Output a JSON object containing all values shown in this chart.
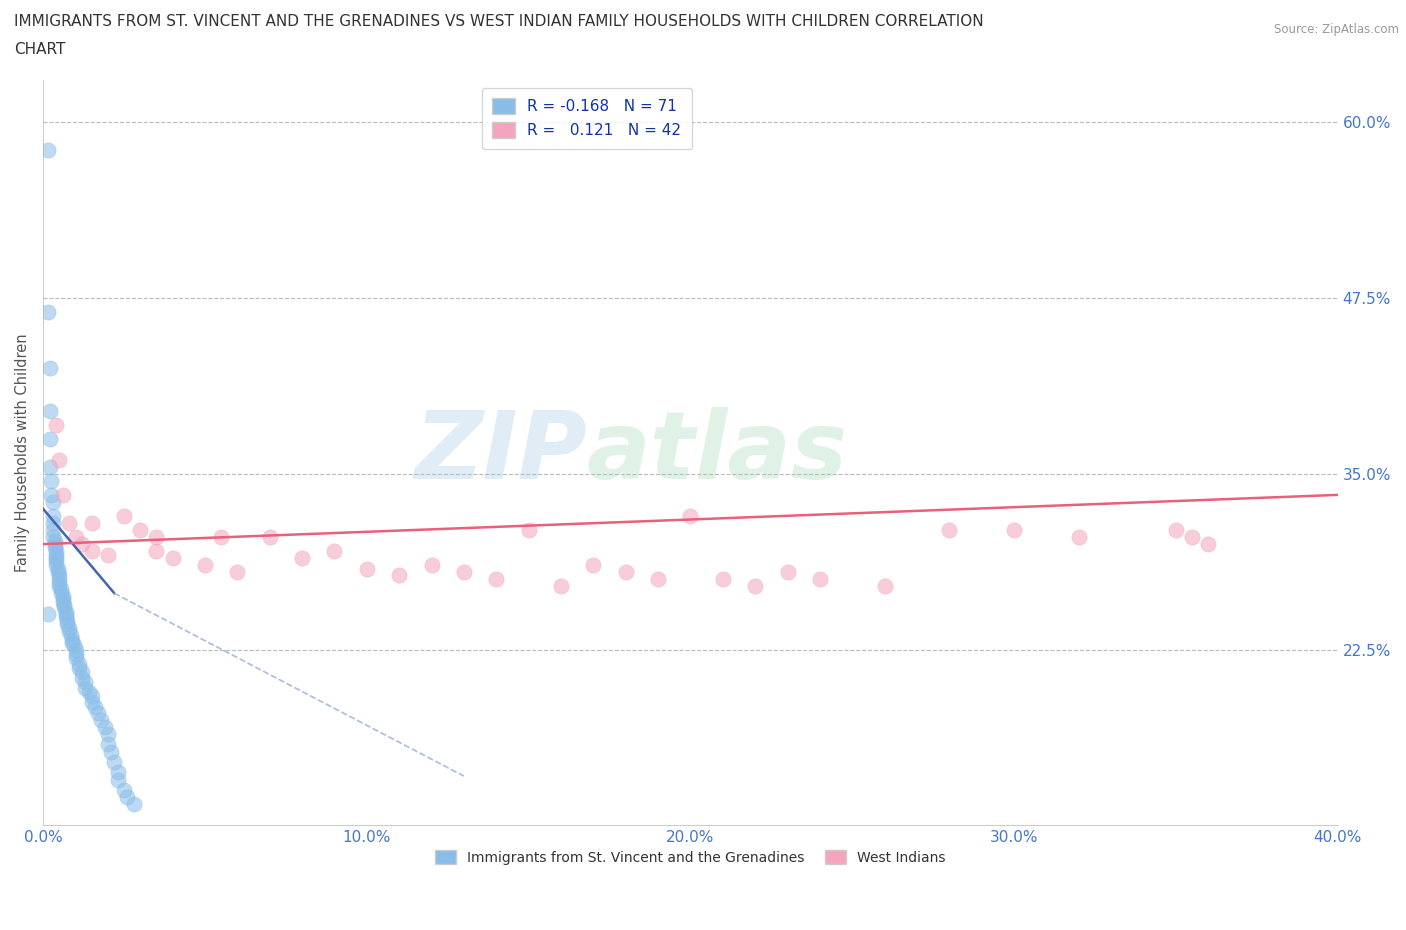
{
  "title_line1": "IMMIGRANTS FROM ST. VINCENT AND THE GRENADINES VS WEST INDIAN FAMILY HOUSEHOLDS WITH CHILDREN CORRELATION",
  "title_line2": "CHART",
  "source": "Source: ZipAtlas.com",
  "ylabel": "Family Households with Children",
  "x_min": 0.0,
  "x_max": 40.0,
  "y_min": 10.0,
  "y_max": 63.0,
  "y_ticks": [
    22.5,
    35.0,
    47.5,
    60.0
  ],
  "x_ticks": [
    0.0,
    10.0,
    20.0,
    30.0,
    40.0
  ],
  "blue_color": "#88bde8",
  "pink_color": "#f4a4bc",
  "regression_blue_solid_color": "#4466aa",
  "regression_blue_dash_color": "#aabbdd",
  "regression_pink_color": "#e8607a",
  "blue_R": -0.168,
  "blue_N": 71,
  "pink_R": 0.121,
  "pink_N": 42,
  "legend_label_blue": "Immigrants from St. Vincent and the Grenadines",
  "legend_label_pink": "West Indians",
  "watermark_left": "ZIP",
  "watermark_right": "atlas",
  "title_color": "#333333",
  "tick_label_color": "#4477cc",
  "grid_color": "#bbbbbb",
  "blue_scatter_x": [
    0.15,
    0.15,
    0.2,
    0.2,
    0.2,
    0.2,
    0.25,
    0.25,
    0.3,
    0.3,
    0.3,
    0.3,
    0.3,
    0.35,
    0.35,
    0.35,
    0.4,
    0.4,
    0.4,
    0.4,
    0.4,
    0.45,
    0.45,
    0.5,
    0.5,
    0.5,
    0.5,
    0.55,
    0.55,
    0.6,
    0.6,
    0.6,
    0.65,
    0.65,
    0.7,
    0.7,
    0.7,
    0.75,
    0.75,
    0.8,
    0.8,
    0.85,
    0.9,
    0.9,
    0.95,
    1.0,
    1.0,
    1.0,
    1.1,
    1.1,
    1.2,
    1.2,
    1.3,
    1.3,
    1.4,
    1.5,
    1.5,
    1.6,
    1.7,
    1.8,
    1.9,
    2.0,
    2.0,
    2.1,
    2.2,
    2.3,
    2.3,
    2.5,
    2.6,
    2.8,
    0.15
  ],
  "blue_scatter_y": [
    58.0,
    46.5,
    42.5,
    39.5,
    37.5,
    35.5,
    34.5,
    33.5,
    33.0,
    32.0,
    31.5,
    31.0,
    30.5,
    30.2,
    30.0,
    29.8,
    29.5,
    29.2,
    29.0,
    28.8,
    28.5,
    28.2,
    28.0,
    27.8,
    27.5,
    27.2,
    27.0,
    26.8,
    26.5,
    26.3,
    26.1,
    25.9,
    25.7,
    25.5,
    25.2,
    25.0,
    24.8,
    24.5,
    24.3,
    24.0,
    23.8,
    23.5,
    23.2,
    23.0,
    22.8,
    22.5,
    22.2,
    21.9,
    21.5,
    21.2,
    20.9,
    20.5,
    20.2,
    19.8,
    19.5,
    19.2,
    18.8,
    18.4,
    18.0,
    17.5,
    17.0,
    16.5,
    15.8,
    15.2,
    14.5,
    13.8,
    13.2,
    12.5,
    12.0,
    11.5,
    25.0
  ],
  "pink_scatter_x": [
    0.4,
    0.5,
    0.6,
    0.8,
    1.0,
    1.2,
    1.5,
    1.5,
    2.0,
    2.5,
    3.0,
    3.5,
    3.5,
    4.0,
    5.0,
    5.5,
    6.0,
    7.0,
    8.0,
    9.0,
    10.0,
    11.0,
    12.0,
    13.0,
    14.0,
    15.0,
    16.0,
    17.0,
    18.0,
    19.0,
    20.0,
    21.0,
    22.0,
    23.0,
    24.0,
    26.0,
    28.0,
    30.0,
    32.0,
    35.0,
    35.5,
    36.0
  ],
  "pink_scatter_y": [
    38.5,
    36.0,
    33.5,
    31.5,
    30.5,
    30.0,
    29.5,
    31.5,
    29.2,
    32.0,
    31.0,
    30.5,
    29.5,
    29.0,
    28.5,
    30.5,
    28.0,
    30.5,
    29.0,
    29.5,
    28.2,
    27.8,
    28.5,
    28.0,
    27.5,
    31.0,
    27.0,
    28.5,
    28.0,
    27.5,
    32.0,
    27.5,
    27.0,
    28.0,
    27.5,
    27.0,
    31.0,
    31.0,
    30.5,
    31.0,
    30.5,
    30.0
  ],
  "blue_regr_x0": 0.0,
  "blue_regr_y0": 32.5,
  "blue_regr_x1": 2.2,
  "blue_regr_y1": 26.5,
  "blue_regr_dash_x0": 2.2,
  "blue_regr_dash_y0": 26.5,
  "blue_regr_dash_x1": 13.0,
  "blue_regr_dash_y1": 13.5,
  "pink_regr_x0": 0.0,
  "pink_regr_y0": 30.0,
  "pink_regr_x1": 40.0,
  "pink_regr_y1": 33.5
}
